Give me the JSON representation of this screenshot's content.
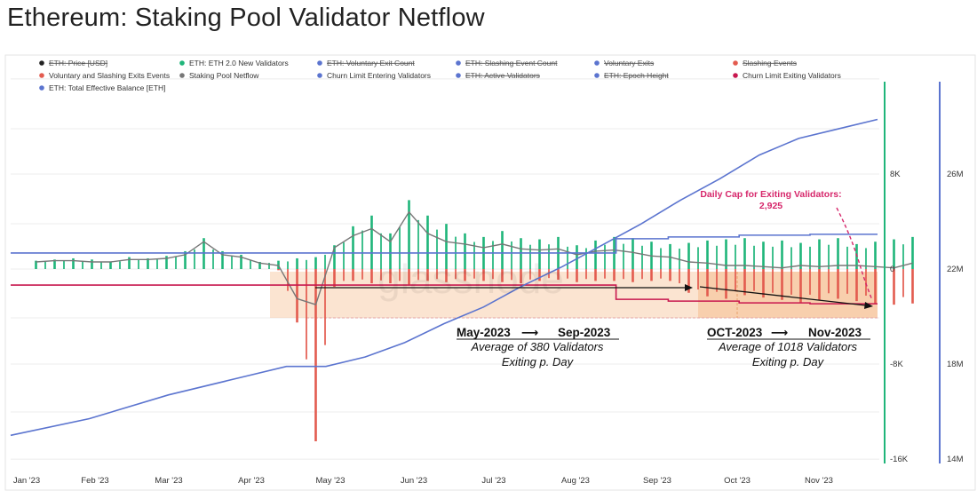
{
  "title": "Ethereum: Staking Pool Validator Netflow",
  "colors": {
    "green": "#1fb57a",
    "red": "#e35b4f",
    "blue": "#5b74cf",
    "gray": "#777777",
    "crimson": "#c8184f",
    "pink": "#d6276b",
    "orange_fill": "#f6c49a"
  },
  "legend": [
    {
      "label": "ETH: Price [USD]",
      "color": "#222222",
      "struck": true
    },
    {
      "label": "ETH: ETH 2.0 New Validators",
      "color": "#1fb57a",
      "struck": false
    },
    {
      "label": "ETH: Voluntary Exit Count",
      "color": "#5b74cf",
      "struck": true
    },
    {
      "label": "ETH: Slashing Event Count",
      "color": "#5b74cf",
      "struck": true
    },
    {
      "label": "Voluntary Exits",
      "color": "#5b74cf",
      "struck": true
    },
    {
      "label": "Slashing Events",
      "color": "#e35b4f",
      "struck": true
    },
    {
      "label": "Voluntary and Slashing Exits Events",
      "color": "#e35b4f",
      "struck": false
    },
    {
      "label": "Staking Pool Netflow",
      "color": "#777777",
      "struck": false
    },
    {
      "label": "Churn Limit Entering Validators",
      "color": "#5b74cf",
      "struck": false
    },
    {
      "label": "ETH: Active Validators",
      "color": "#5b74cf",
      "struck": true
    },
    {
      "label": "ETH: Epoch Height",
      "color": "#5b74cf",
      "struck": true
    },
    {
      "label": "Churn Limit Exiting Validators",
      "color": "#c8184f",
      "struck": false
    },
    {
      "label": "ETH: Total Effective Balance [ETH]",
      "color": "#5b74cf",
      "struck": false
    }
  ],
  "annotations": {
    "period1_title_a": "May-2023",
    "period1_title_b": "Sep-2023",
    "period1_line1": "Average of 380 Validators",
    "period1_line2": "Exiting p. Day",
    "period2_title_a": "OCT-2023",
    "period2_title_b": "Nov-2023",
    "period2_line1": "Average of 1018 Validators",
    "period2_line2": "Exiting p. Day",
    "cap_line1": "Daily Cap for Exiting Validators:",
    "cap_line2": "2,925",
    "arrow": "⟶"
  },
  "chart_data": {
    "type": "bar",
    "x_ticks": [
      "Jan '23",
      "Feb '23",
      "Mar '23",
      "Apr '23",
      "May '23",
      "Jun '23",
      "Jul '23",
      "Aug '23",
      "Sep '23",
      "Oct '23",
      "Nov '23"
    ],
    "y_left_ticks": [
      "8K",
      "0",
      "-8K",
      "-16K"
    ],
    "y_left_range": [
      -16000,
      16000
    ],
    "y_right_ticks": [
      "26M",
      "22M",
      "18M",
      "14M"
    ],
    "y_right_range": [
      14000000,
      30000000
    ],
    "series": [
      {
        "name": "ETH: ETH 2.0 New Validators",
        "axis": "left",
        "kind": "bar",
        "samples_per_month": 4,
        "values": [
          700,
          800,
          900,
          800,
          600,
          1000,
          900,
          1100,
          1500,
          2600,
          1500,
          1200,
          600,
          700,
          900,
          1000,
          2000,
          3600,
          4500,
          3000,
          5800,
          4500,
          3800,
          3000,
          2700,
          3200,
          2600,
          2500,
          2700,
          2000,
          2400,
          2700,
          2600,
          2300,
          2100,
          2200,
          2400,
          2500,
          2600,
          2300,
          2400,
          2200,
          2500,
          2600,
          2100,
          2300,
          2500,
          2700
        ]
      },
      {
        "name": "Voluntary and Slashing Exits Events",
        "axis": "left",
        "kind": "bar",
        "samples_per_month": 4,
        "values": [
          0,
          0,
          0,
          0,
          0,
          0,
          0,
          0,
          0,
          0,
          0,
          0,
          0,
          -100,
          -4500,
          -14500,
          -1500,
          -1000,
          -1200,
          -1200,
          -1300,
          -1000,
          -1100,
          -1000,
          -1000,
          -1100,
          -1200,
          -1000,
          -900,
          -1100,
          -1000,
          -1000,
          -1100,
          -1000,
          -1000,
          -2000,
          -2300,
          -2500,
          -2200,
          -2400,
          -2600,
          -2800,
          -2600,
          -2500,
          -2700,
          -2900,
          -3000,
          -2900
        ]
      },
      {
        "name": "Staking Pool Netflow",
        "axis": "left",
        "kind": "line",
        "samples_per_month": 4,
        "values": [
          600,
          700,
          700,
          600,
          600,
          800,
          800,
          900,
          1200,
          2300,
          1200,
          1000,
          500,
          300,
          -2500,
          -3000,
          1800,
          2800,
          3400,
          2300,
          4800,
          3000,
          2300,
          2100,
          1800,
          2100,
          1700,
          1600,
          1700,
          1200,
          1500,
          1600,
          1400,
          1100,
          1000,
          600,
          500,
          300,
          300,
          200,
          100,
          300,
          200,
          300,
          300,
          200,
          100,
          500
        ]
      },
      {
        "name": "Churn Limit Entering Validators",
        "axis": "left",
        "kind": "step",
        "x": [
          0,
          3.3,
          7.9,
          8.6,
          9.55,
          10.5
        ],
        "values": [
          1350,
          1350,
          2550,
          2700,
          2850,
          2925
        ]
      },
      {
        "name": "Churn Limit Exiting Validators",
        "axis": "left",
        "kind": "step",
        "x": [
          0,
          3.3,
          7.9,
          8.6,
          9.55,
          10.5
        ],
        "values": [
          -1350,
          -1350,
          -2550,
          -2700,
          -2850,
          -2925
        ]
      },
      {
        "name": "ETH: Total Effective Balance [ETH]",
        "axis": "right",
        "kind": "line",
        "x": [
          0,
          1,
          2,
          3,
          3.5,
          4,
          4.5,
          5,
          5.5,
          6,
          6.5,
          7,
          7.5,
          8,
          8.5,
          9,
          9.5,
          10,
          10.5,
          11
        ],
        "values": [
          15000000,
          15700000,
          16700000,
          17500000,
          17900000,
          17900000,
          18300000,
          18900000,
          19700000,
          20400000,
          21300000,
          22100000,
          23000000,
          23900000,
          24900000,
          25800000,
          26800000,
          27500000,
          27900000,
          28300000
        ]
      }
    ]
  }
}
